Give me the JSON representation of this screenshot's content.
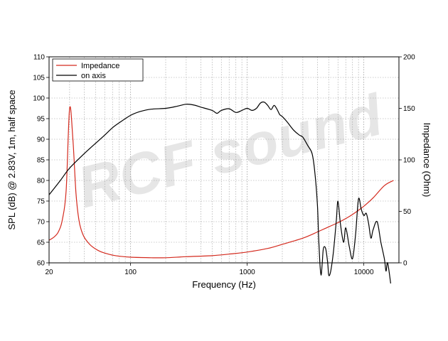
{
  "chart_data": {
    "type": "line",
    "xlabel": "Frequency (Hz)",
    "ylabel": "SPL (dB) @ 2.83V, 1m, half space",
    "y2label": "Impedance (Ohm)",
    "x_scale": "log",
    "xlim": [
      20,
      20000
    ],
    "ylim": [
      60,
      110
    ],
    "y2lim": [
      0,
      200
    ],
    "x_ticks": [
      "20",
      "100",
      "1000",
      "10000"
    ],
    "y_ticks": [
      "60",
      "65",
      "70",
      "75",
      "80",
      "85",
      "90",
      "95",
      "100",
      "105",
      "110"
    ],
    "y2_ticks": [
      "0",
      "50",
      "100",
      "150",
      "200"
    ],
    "grid": true,
    "legend_position": "top-left",
    "watermark": "RCF sound",
    "series": [
      {
        "name": "Impedance",
        "axis": "right",
        "color": "#d42a1e",
        "x": [
          20,
          22,
          24,
          26,
          28,
          30,
          32,
          34,
          36,
          38,
          40,
          43,
          46,
          50,
          55,
          60,
          70,
          80,
          100,
          150,
          200,
          300,
          500,
          700,
          1000,
          1500,
          2000,
          3000,
          4000,
          5000,
          6000,
          7000,
          8000,
          10000,
          12000,
          15000,
          18000
        ],
        "values": [
          22,
          25,
          30,
          42,
          70,
          150,
          120,
          68,
          42,
          31,
          25,
          20,
          16.5,
          13.5,
          11,
          9.5,
          7.5,
          6.5,
          5.5,
          5,
          5,
          6,
          7,
          8.5,
          10.5,
          14,
          18,
          24,
          30,
          35,
          39,
          43,
          47,
          55,
          63,
          75,
          80
        ]
      },
      {
        "name": "on axis",
        "axis": "left",
        "color": "#000000",
        "x": [
          20,
          25,
          30,
          40,
          50,
          60,
          70,
          80,
          100,
          120,
          150,
          200,
          250,
          300,
          350,
          400,
          500,
          550,
          600,
          700,
          800,
          900,
          1000,
          1100,
          1200,
          1300,
          1400,
          1500,
          1600,
          1700,
          1800,
          1900,
          2000,
          2200,
          2500,
          2800,
          3000,
          3300,
          3600,
          3800,
          4000,
          4100,
          4200,
          4300,
          4400,
          4500,
          4700,
          4900,
          5000,
          5200,
          5500,
          5800,
          6000,
          6300,
          6700,
          7000,
          7500,
          8000,
          8500,
          9000,
          9500,
          10000,
          10500,
          11000,
          11500,
          12000,
          13000,
          14000,
          15000,
          15500,
          16000,
          17000
        ],
        "values": [
          76.5,
          80,
          83,
          86.5,
          89,
          91,
          92.8,
          94,
          95.8,
          96.7,
          97.3,
          97.5,
          98,
          98.5,
          98.3,
          97.8,
          97,
          96.3,
          97,
          97.4,
          96.5,
          97,
          97.5,
          97,
          97.5,
          98.8,
          99,
          98.2,
          97.2,
          98.2,
          97.3,
          96,
          95.5,
          94.2,
          92.2,
          91,
          90.5,
          88.5,
          86.5,
          82,
          74,
          66,
          60,
          57,
          60,
          63.5,
          63.5,
          60,
          57,
          58,
          63,
          70,
          75,
          69.5,
          65,
          68.5,
          64,
          61,
          67,
          75.5,
          73,
          71.5,
          72,
          69.5,
          66,
          68,
          70,
          65,
          61,
          58,
          60,
          55
        ]
      }
    ]
  }
}
